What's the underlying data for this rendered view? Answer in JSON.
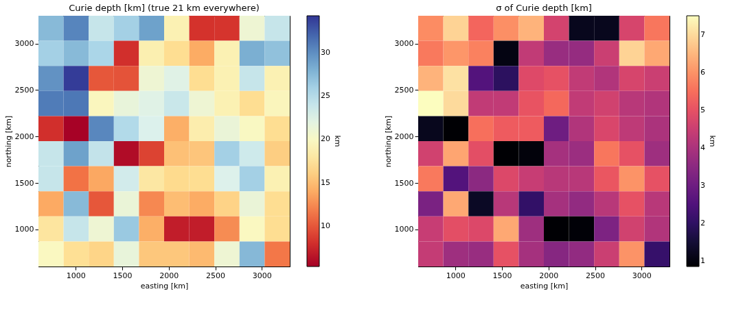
{
  "chart_data": [
    {
      "type": "heatmap",
      "title": "Curie depth [km]   (true 21 km everywhere)",
      "xlabel": "easting [km]",
      "ylabel": "northing [km]",
      "clabel": "km",
      "x": [
        735,
        1005,
        1275,
        1545,
        1815,
        2085,
        2355,
        2625,
        2895,
        3165
      ],
      "y": [
        3165,
        2895,
        2625,
        2355,
        2085,
        1815,
        1545,
        1275,
        1005,
        735
      ],
      "xlim": [
        600,
        3300
      ],
      "ylim": [
        600,
        3300
      ],
      "xticks": [
        1000,
        1500,
        2000,
        2500,
        3000
      ],
      "yticks": [
        1000,
        1500,
        2000,
        2500,
        3000
      ],
      "clim": [
        5.3,
        34.3
      ],
      "cticks": [
        10,
        15,
        20,
        25,
        30
      ],
      "grid": false,
      "cells": [
        [
          27.5,
          30.5,
          24,
          26,
          29,
          19,
          8.2,
          8.3,
          21,
          24
        ],
        [
          26,
          27.5,
          25.6,
          8,
          18.8,
          17,
          14,
          19,
          28.2,
          27
        ],
        [
          29.8,
          34,
          10,
          9.8,
          21,
          22.3,
          17,
          19,
          24,
          19
        ],
        [
          31,
          31.2,
          19.6,
          21.5,
          22.3,
          23.8,
          21,
          19,
          17,
          19.5
        ],
        [
          8,
          5.4,
          30.4,
          25.2,
          22.7,
          14.2,
          18.6,
          21.3,
          19.9,
          17
        ],
        [
          24,
          29,
          24.2,
          6,
          9,
          15.2,
          15.5,
          26,
          23.5,
          16
        ],
        [
          24,
          11.3,
          13.8,
          23.3,
          18,
          16.8,
          17,
          22.6,
          26,
          19
        ],
        [
          13.9,
          27.5,
          10,
          21.3,
          12.3,
          15,
          14,
          16.3,
          21.3,
          17
        ],
        [
          17.8,
          24,
          21,
          26.5,
          14.2,
          7,
          7,
          12.5,
          19.8,
          17
        ],
        [
          19.8,
          17.2,
          16.4,
          21.5,
          15.6,
          15.6,
          14.8,
          21,
          27.6,
          11.5
        ]
      ]
    },
    {
      "type": "heatmap",
      "title": "σ of Curie depth [km]",
      "xlabel": "easting [km]",
      "ylabel": "northing [km]",
      "clabel": "km",
      "x": [
        735,
        1005,
        1275,
        1545,
        1815,
        2085,
        2355,
        2625,
        2895,
        3165
      ],
      "y": [
        3165,
        2895,
        2625,
        2355,
        2085,
        1815,
        1545,
        1275,
        1005,
        735
      ],
      "xlim": [
        600,
        3300
      ],
      "ylim": [
        600,
        3300
      ],
      "xticks": [
        1000,
        1500,
        2000,
        2500,
        3000
      ],
      "yticks": [
        1000,
        1500,
        2000,
        2500,
        3000
      ],
      "clim": [
        0.85,
        7.5
      ],
      "cticks": [
        1,
        2,
        3,
        4,
        5,
        6,
        7
      ],
      "grid": false,
      "cells": [
        [
          5.9,
          6.9,
          5.35,
          5.95,
          6.45,
          4.65,
          1.2,
          1.2,
          4.7,
          5.6
        ],
        [
          5.65,
          6.05,
          5.75,
          1.05,
          4.35,
          3.7,
          3.65,
          4.5,
          6.9,
          6.3
        ],
        [
          6.45,
          7.1,
          2.55,
          1.95,
          4.85,
          5,
          4.35,
          4.1,
          4.7,
          4.5
        ],
        [
          7.5,
          7,
          4.35,
          4.35,
          5.05,
          5.4,
          4.35,
          4.6,
          4.2,
          4.1
        ],
        [
          1.2,
          0.85,
          5.5,
          5.2,
          5.2,
          3,
          4.1,
          4.75,
          4.3,
          4
        ],
        [
          4.6,
          6.25,
          4.95,
          0.85,
          0.95,
          3.9,
          3.75,
          5.6,
          5,
          3.8
        ],
        [
          5.65,
          2.55,
          3.5,
          4.8,
          4.45,
          4.2,
          4.2,
          5.1,
          6,
          5
        ],
        [
          3.2,
          6.3,
          1.3,
          4.2,
          2.05,
          3.9,
          3.6,
          4.2,
          5,
          4.2
        ],
        [
          4.45,
          4.95,
          4.8,
          6.3,
          3.8,
          0.85,
          0.9,
          3.25,
          4.6,
          4.1
        ],
        [
          4.4,
          3.8,
          3.7,
          5,
          3.9,
          3.4,
          3.6,
          4.5,
          6,
          2.1
        ]
      ]
    }
  ]
}
